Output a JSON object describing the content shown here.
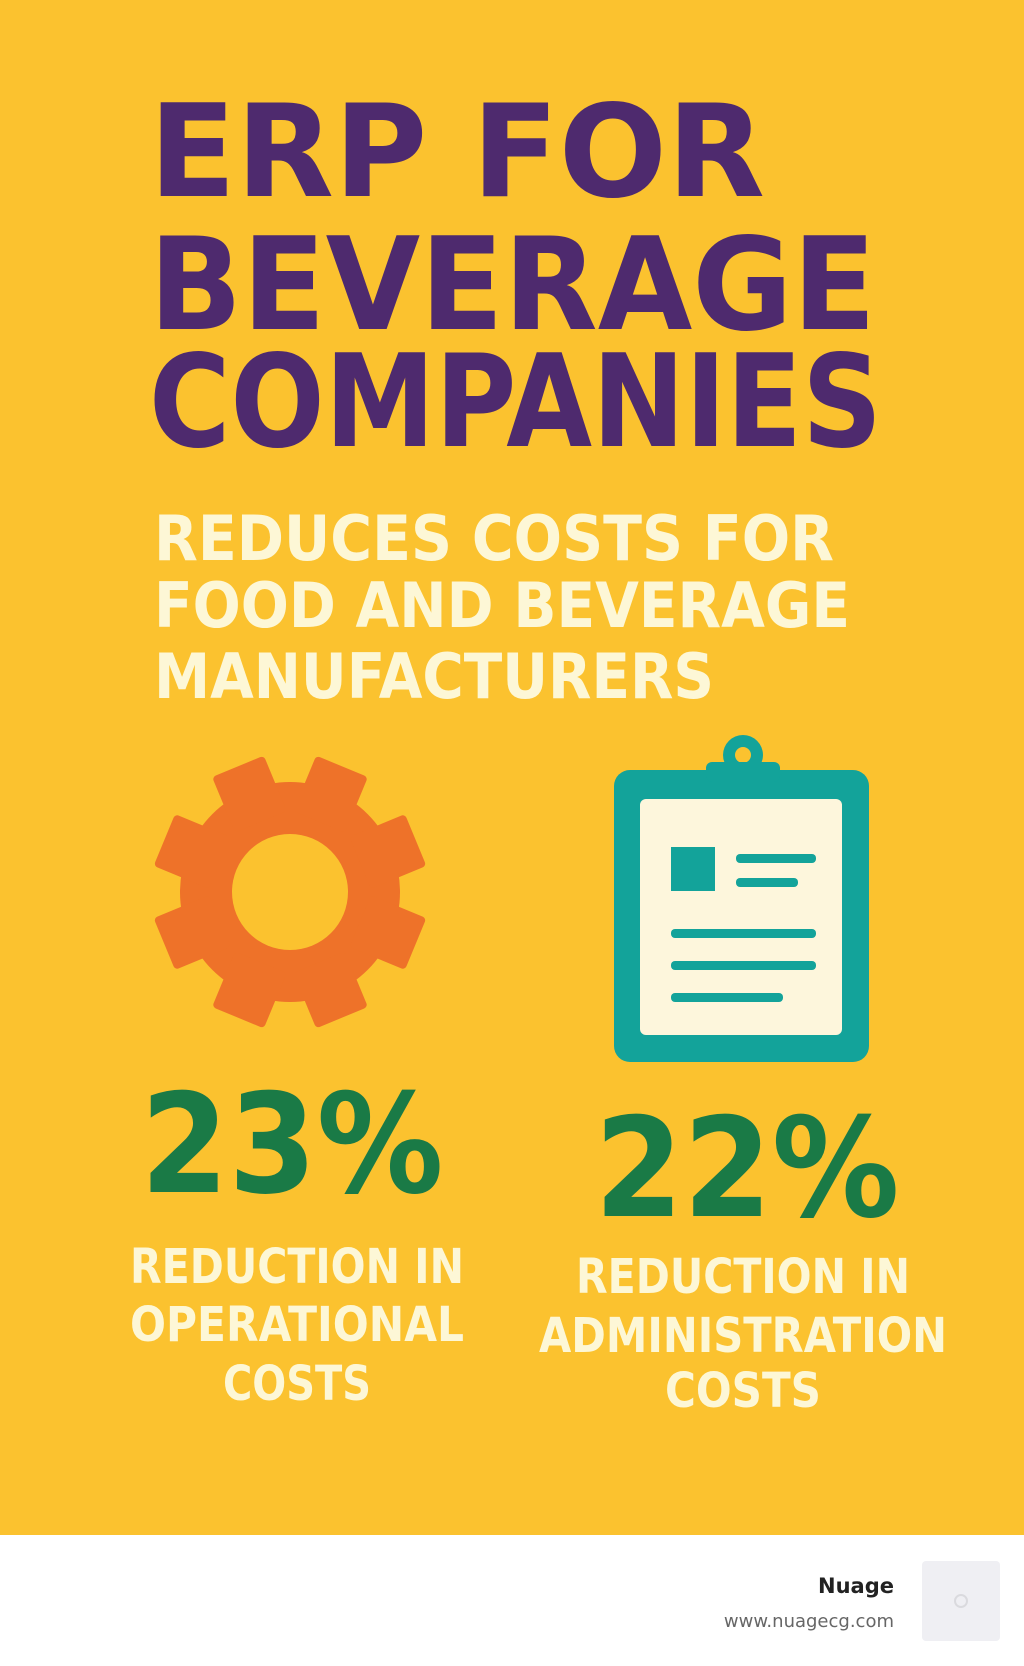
{
  "title": [
    "ERP FOR",
    "BEVERAGE",
    "COMPANIES"
  ],
  "subtitle": [
    "REDUCES COSTS FOR",
    "FOOD AND BEVERAGE",
    "MANUFACTURERS"
  ],
  "stats": [
    {
      "value": "23%",
      "label": [
        "REDUCTION IN",
        "OPERATIONAL",
        "COSTS"
      ]
    },
    {
      "value": "22%",
      "label": [
        "REDUCTION IN",
        "ADMINISTRATION",
        "COSTS"
      ]
    }
  ],
  "footer": {
    "brand": "Nuage",
    "url": "www.nuagecg.com"
  }
}
